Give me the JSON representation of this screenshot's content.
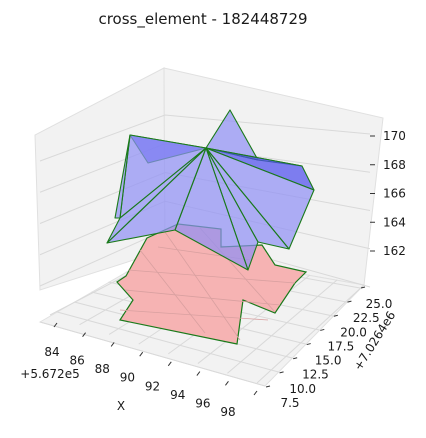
{
  "chart_data": {
    "type": "surface3d",
    "title": "cross_element - 182448729",
    "xlabel": "X",
    "ylabel": "Y",
    "zlabel": "",
    "x_offset_label": "+5.672e5",
    "y_offset_label": "+7.0264e6",
    "x_ticks": [
      "84",
      "86",
      "88",
      "90",
      "92",
      "94",
      "96",
      "98"
    ],
    "y_ticks": [
      "7.5",
      "10.0",
      "12.5",
      "15.0",
      "17.5",
      "20.0",
      "22.5",
      "25.0"
    ],
    "z_ticks": [
      "162",
      "164",
      "166",
      "168",
      "170"
    ],
    "grid": true,
    "colors": {
      "surface_fill": "#8f8ff5",
      "surface_dark": "#4c4cee",
      "footprint_fill": "#f6b3b3",
      "edge": "#1a7a1a",
      "pane": "#f2f2f2",
      "grid": "#d9d9d9"
    }
  }
}
